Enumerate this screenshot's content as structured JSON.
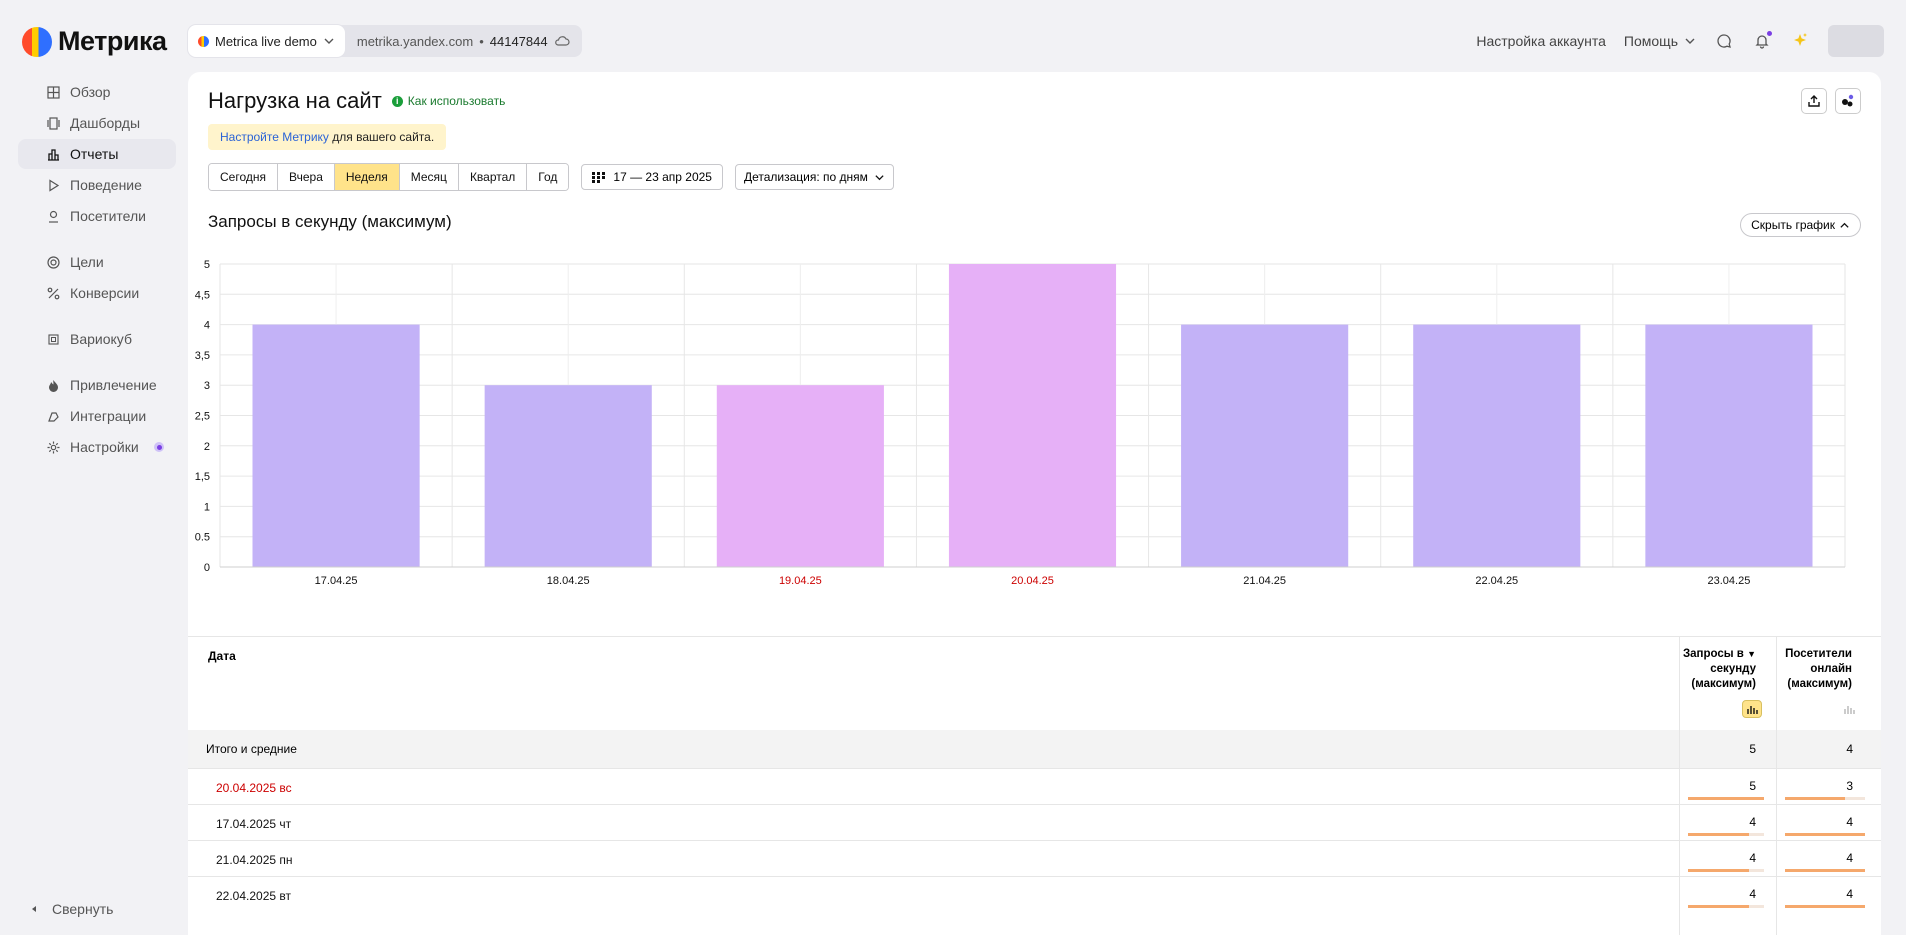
{
  "app": {
    "logo_text": "Метрика"
  },
  "counter": {
    "name": "Metrica live demo",
    "domain": "metrika.yandex.com",
    "id": "44147844"
  },
  "topbar": {
    "account_settings": "Настройка аккаунта",
    "help": "Помощь"
  },
  "sidebar": {
    "items": [
      {
        "label": "Обзор",
        "icon": "grid-icon"
      },
      {
        "label": "Дашборды",
        "icon": "dashboards-icon"
      },
      {
        "label": "Отчеты",
        "icon": "reports-icon",
        "active": true
      },
      {
        "label": "Поведение",
        "icon": "play-icon"
      },
      {
        "label": "Посетители",
        "icon": "user-icon"
      },
      {
        "label": "Цели",
        "icon": "target-icon"
      },
      {
        "label": "Конверсии",
        "icon": "percent-icon"
      },
      {
        "label": "Вариокуб",
        "icon": "variocube-icon"
      },
      {
        "label": "Привлечение",
        "icon": "flame-icon"
      },
      {
        "label": "Интеграции",
        "icon": "integrations-icon"
      },
      {
        "label": "Настройки",
        "icon": "gear-icon"
      }
    ],
    "collapse_label": "Свернуть"
  },
  "report": {
    "title": "Нагрузка на сайт",
    "howto": "Как использовать",
    "banner_link": "Настройте Метрику",
    "banner_text": " для вашего сайта.",
    "periods": [
      "Сегодня",
      "Вчера",
      "Неделя",
      "Месяц",
      "Квартал",
      "Год"
    ],
    "active_period": "Неделя",
    "date_range": "17 — 23 апр 2025",
    "detail": "Детализация: по дням",
    "chart_title": "Запросы в секунду (максимум)",
    "hide_chart": "Скрыть график"
  },
  "colors": {
    "bar_weekday": "#c3b2f7",
    "bar_weekend": "#e6b0f7",
    "weekend_text": "#cc0000",
    "accent_yellow": "#ffe38a"
  },
  "chart_data": {
    "type": "bar",
    "categories": [
      "17.04.25",
      "18.04.25",
      "19.04.25",
      "20.04.25",
      "21.04.25",
      "22.04.25",
      "23.04.25"
    ],
    "weekend": [
      false,
      false,
      true,
      true,
      false,
      false,
      false
    ],
    "values": [
      4,
      3,
      3,
      5,
      4,
      4,
      4
    ],
    "yticks": [
      "0",
      "0.5",
      "1",
      "1,5",
      "2",
      "2,5",
      "3",
      "3,5",
      "4",
      "4,5",
      "5"
    ],
    "ylim": [
      0,
      5
    ],
    "grid": true,
    "title": "Запросы в секунду (максимум)"
  },
  "table": {
    "col_date": "Дата",
    "col_m1_line1": "Запросы в",
    "col_m1_line2": "секунду",
    "col_m1_line3": "(максимум)",
    "col_m1_sort": "▼",
    "col_m2_line1": "Посетители",
    "col_m2_line2": "онлайн",
    "col_m2_line3": "(максимум)",
    "total_label": "Итого и средние",
    "total_m1": "5",
    "total_m2": "4",
    "rows": [
      {
        "date": "20.04.2025 вс",
        "m1": "5",
        "m2": "3",
        "weekend": true,
        "m1_frac": 1.0,
        "m2_frac": 0.75
      },
      {
        "date": "17.04.2025 чт",
        "m1": "4",
        "m2": "4",
        "weekend": false,
        "m1_frac": 0.8,
        "m2_frac": 1.0
      },
      {
        "date": "21.04.2025 пн",
        "m1": "4",
        "m2": "4",
        "weekend": false,
        "m1_frac": 0.8,
        "m2_frac": 1.0
      },
      {
        "date": "22.04.2025 вт",
        "m1": "4",
        "m2": "4",
        "weekend": false,
        "m1_frac": 0.8,
        "m2_frac": 1.0
      }
    ]
  }
}
